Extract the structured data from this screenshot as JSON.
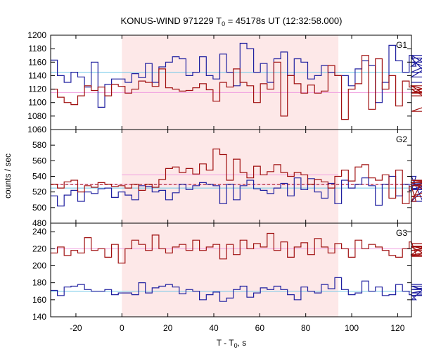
{
  "chart_data": {
    "type": "line",
    "title": {
      "main": "KONUS-WIND 971229 T",
      "sub": "0",
      "rest": " = 45178s UT (12:32:58.000)"
    },
    "xlabel": {
      "main": "T - T",
      "sub": "0",
      "rest": ", s"
    },
    "ylabel": "counts / sec",
    "xlim": [
      -31,
      126
    ],
    "xticks": [
      -20,
      0,
      20,
      40,
      60,
      80,
      100,
      120
    ],
    "highlight": {
      "x_start": 0,
      "x_end": 94.2,
      "color": "#fde8e8"
    },
    "colors": {
      "red": "#a01010",
      "blue": "#2020a0",
      "red_bg": "#f0a0e0",
      "blue_bg": "#70c8e8"
    },
    "panels": [
      {
        "name": "G1",
        "ylim": [
          1060,
          1200
        ],
        "yticks": [
          1060,
          1080,
          1100,
          1120,
          1140,
          1160,
          1180,
          1200
        ],
        "x_start": -31,
        "bin": 2.944,
        "red_bg": 1115,
        "blue_bg": 1145,
        "red": [
          1120,
          1108,
          1100,
          1097,
          1110,
          1125,
          1118,
          1123,
          1110,
          1127,
          1124,
          1114,
          1120,
          1132,
          1130,
          1124,
          1150,
          1122,
          1120,
          1117,
          1118,
          1122,
          1128,
          1119,
          1102,
          1130,
          1123,
          1150,
          1130,
          1125,
          1100,
          1128,
          1120,
          1160,
          1080,
          1140,
          1128,
          1114,
          1126,
          1114,
          1117,
          1155,
          1140,
          1075,
          1120,
          1128,
          1170,
          1090,
          1165,
          1120,
          1140,
          1095,
          1132,
          1123,
          1125,
          1114,
          1125,
          1115,
          1120,
          1087,
          1110
        ],
        "blue": [
          1163,
          1140,
          1130,
          1145,
          1138,
          1123,
          1160,
          1093,
          1127,
          1135,
          1135,
          1130,
          1143,
          1137,
          1158,
          1130,
          1153,
          1160,
          1168,
          1165,
          1140,
          1145,
          1168,
          1140,
          1135,
          1172,
          1145,
          1125,
          1188,
          1180,
          1145,
          1158,
          1130,
          1165,
          1175,
          1140,
          1165,
          1160,
          1135,
          1140,
          1155,
          1145,
          1140,
          1140,
          1125,
          1150,
          1162,
          1155,
          1100,
          1130,
          1185,
          1162,
          1145,
          1170,
          1154,
          1166,
          1138,
          1160,
          1145,
          1170,
          1130
        ]
      },
      {
        "name": "G2",
        "ylim": [
          480,
          600
        ],
        "yticks": [
          480,
          500,
          520,
          540,
          560,
          580
        ],
        "x_start": -31,
        "bin": 2.944,
        "red_bg": 530,
        "red_bg2": 542,
        "blue_bg": 525,
        "red": [
          530,
          525,
          533,
          535,
          520,
          528,
          526,
          532,
          530,
          527,
          528,
          525,
          530,
          522,
          530,
          526,
          536,
          550,
          552,
          545,
          550,
          543,
          556,
          548,
          575,
          568,
          535,
          562,
          545,
          538,
          553,
          542,
          546,
          555,
          545,
          540,
          545,
          542,
          530,
          536,
          533,
          525,
          540,
          548,
          534,
          552,
          555,
          538,
          535,
          542,
          512,
          548,
          505,
          527,
          508,
          535,
          532,
          514,
          528,
          535,
          532
        ],
        "blue": [
          515,
          502,
          516,
          522,
          508,
          520,
          518,
          524,
          525,
          513,
          520,
          516,
          510,
          528,
          527,
          520,
          522,
          510,
          519,
          530,
          523,
          528,
          532,
          530,
          528,
          505,
          530,
          510,
          528,
          535,
          524,
          522,
          518,
          525,
          531,
          515,
          538,
          523,
          537,
          520,
          512,
          531,
          505,
          535,
          525,
          530,
          538,
          528,
          503,
          530,
          540,
          515,
          530,
          522,
          540,
          508,
          530,
          523,
          524,
          532,
          528
        ]
      },
      {
        "name": "G3",
        "ylim": [
          140,
          250
        ],
        "yticks": [
          140,
          160,
          180,
          200,
          220,
          240
        ],
        "x_start": -31,
        "bin": 2.944,
        "red_bg": 220,
        "blue_bg": 170,
        "red": [
          215,
          222,
          212,
          218,
          215,
          233,
          218,
          220,
          210,
          225,
          203,
          220,
          230,
          225,
          218,
          236,
          220,
          215,
          222,
          225,
          218,
          230,
          218,
          222,
          225,
          208,
          225,
          213,
          230,
          220,
          226,
          222,
          238,
          218,
          228,
          210,
          222,
          227,
          213,
          232,
          222,
          215,
          226,
          220,
          210,
          230,
          220,
          225,
          222,
          218,
          212,
          210,
          220,
          228,
          213,
          222,
          211,
          218,
          223,
          212,
          226
        ],
        "blue": [
          171,
          165,
          175,
          176,
          178,
          172,
          170,
          170,
          172,
          166,
          168,
          168,
          166,
          180,
          168,
          174,
          176,
          178,
          175,
          167,
          172,
          170,
          160,
          166,
          169,
          158,
          162,
          172,
          176,
          163,
          168,
          174,
          172,
          176,
          172,
          166,
          160,
          175,
          170,
          168,
          178,
          173,
          186,
          172,
          166,
          168,
          182,
          170,
          175,
          165,
          166,
          178,
          170,
          166,
          160,
          172,
          172,
          176,
          165,
          168,
          178
        ]
      }
    ]
  }
}
